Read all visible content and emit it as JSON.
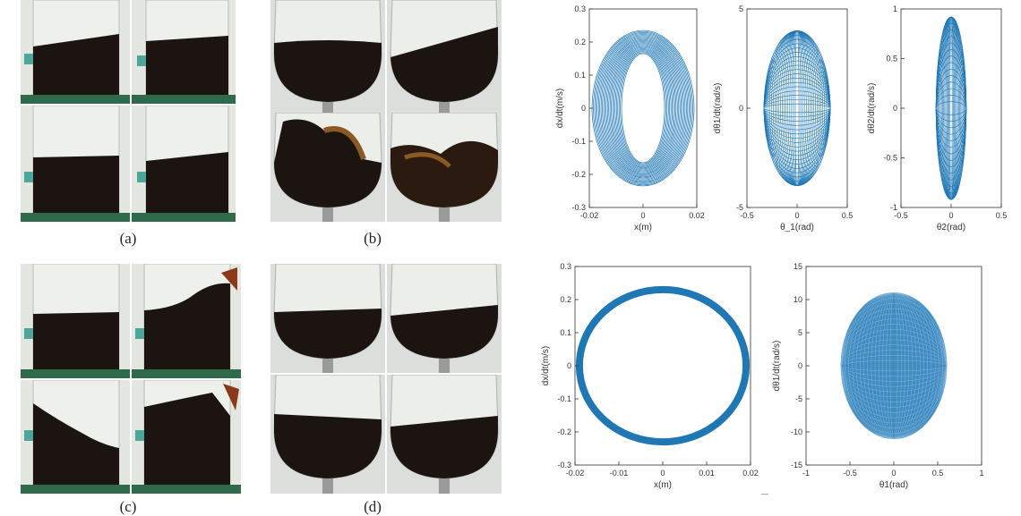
{
  "captions": [
    "(a)",
    "(b)",
    "(c)",
    "(d)"
  ],
  "colors": {
    "plot": "#1f77b4",
    "liquid": "#1c1410",
    "background": "#d9dcd6"
  },
  "plots": [
    {
      "id": "p1",
      "xlabel": "x(m)",
      "ylabel": "dx/dt(m/s)",
      "xticks": [
        "-0.02",
        "0",
        "0.02"
      ],
      "yticks": [
        "0.3",
        "0.2",
        "0.1",
        "0",
        "-0.1",
        "-0.2",
        "-0.3"
      ]
    },
    {
      "id": "p2",
      "xlabel": "θ_1(rad)",
      "ylabel": "dθ1/dt(rad/s)",
      "xticks": [
        "-0.5",
        "0",
        "0.5"
      ],
      "yticks": [
        "5",
        "0",
        "-5"
      ]
    },
    {
      "id": "p3",
      "xlabel": "θ2(rad)",
      "ylabel": "dθ2/dt(rad/s)",
      "xticks": [
        "-0.5",
        "0",
        "0.5"
      ],
      "yticks": [
        "1",
        "0.5",
        "0",
        "-0.5",
        "-1"
      ]
    },
    {
      "id": "p4",
      "xlabel": "x(m)",
      "ylabel": "dx/dt(m/s)",
      "xticks": [
        "-0.02",
        "-0.01",
        "0",
        "0.01",
        "0.02"
      ],
      "yticks": [
        "0.3",
        "0.2",
        "0.1",
        "0",
        "-0.1",
        "-0.2",
        "-0.3"
      ]
    },
    {
      "id": "p5",
      "xlabel": "θ1(rad)",
      "ylabel": "dθ1/dt(rad/s)",
      "xticks": [
        "-1",
        "-0.5",
        "0",
        "0.5",
        "1"
      ],
      "yticks": [
        "15",
        "10",
        "5",
        "0",
        "-5",
        "-10",
        "-15"
      ]
    }
  ],
  "chart_data": [
    {
      "type": "scatter",
      "description_free": true,
      "xlim": [
        -0.02,
        0.02
      ],
      "ylim": [
        -0.3,
        0.3
      ],
      "xlabel": "x(m)",
      "ylabel": "dx/dt(m/s)",
      "grid": false,
      "series": [
        {
          "values_outer": {
            "x_amp": 0.019,
            "y_amp": 0.235
          },
          "values_inner": {
            "x_amp": 0.008,
            "y_amp": 0.165
          }
        }
      ]
    },
    {
      "type": "scatter",
      "xlim": [
        -0.5,
        0.5
      ],
      "ylim": [
        -5,
        5
      ],
      "xlabel": "θ_1(rad)",
      "ylabel": "dθ1/dt(rad/s)",
      "series": [
        {
          "values_outer": {
            "x_amp": 0.33,
            "y_amp": 3.9
          }
        }
      ]
    },
    {
      "type": "scatter",
      "xlim": [
        -0.5,
        0.5
      ],
      "ylim": [
        -1,
        1
      ],
      "xlabel": "θ2(rad)",
      "ylabel": "dθ2/dt(rad/s)",
      "series": [
        {
          "values_outer": {
            "x_amp": 0.15,
            "y_amp": 0.92
          }
        }
      ]
    },
    {
      "type": "line",
      "xlim": [
        -0.02,
        0.02
      ],
      "ylim": [
        -0.3,
        0.3
      ],
      "xlabel": "x(m)",
      "ylabel": "dx/dt(m/s)",
      "series": [
        {
          "values_outer": {
            "x_amp": 0.0195,
            "y_amp": 0.235
          },
          "values_inner": {
            "x_amp": 0.0185,
            "y_amp": 0.225
          }
        }
      ]
    },
    {
      "type": "scatter",
      "xlim": [
        -1,
        1
      ],
      "ylim": [
        -15,
        15
      ],
      "xlabel": "θ1(rad)",
      "ylabel": "dθ1/dt(rad/s)",
      "series": [
        {
          "values_outer": {
            "x_amp": 0.6,
            "y_amp": 11
          }
        }
      ]
    }
  ]
}
